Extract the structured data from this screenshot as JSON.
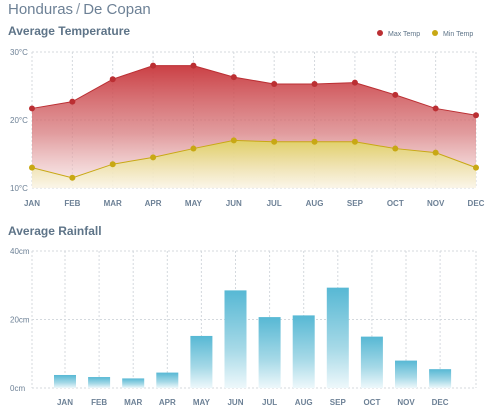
{
  "header": {
    "country": "Honduras",
    "separator": "/",
    "location": "De Copan"
  },
  "colors": {
    "max_temp": "#bb2f33",
    "max_temp_fill_top": "#c8363b",
    "min_temp": "#c8a814",
    "min_temp_fill_top": "#e0d264",
    "rain_bar_top": "#57b8d4",
    "grid": "#d4d9de",
    "axis_text": "#6d8196"
  },
  "chart_data": [
    {
      "type": "area",
      "title": "Average Temperature",
      "categories": [
        "JAN",
        "FEB",
        "MAR",
        "APR",
        "MAY",
        "JUN",
        "JUL",
        "AUG",
        "SEP",
        "OCT",
        "NOV",
        "DEC"
      ],
      "y_ticks": [
        {
          "value": 30,
          "label": "30°C"
        },
        {
          "value": 20,
          "label": "20°C"
        },
        {
          "value": 10,
          "label": "10°C"
        }
      ],
      "ylim": [
        10,
        30
      ],
      "grid": true,
      "legend_position": "top-right",
      "series": [
        {
          "name": "Max Temp",
          "values": [
            21.7,
            22.7,
            26.0,
            28.0,
            28.0,
            26.3,
            25.3,
            25.3,
            25.5,
            23.7,
            21.7,
            20.7
          ]
        },
        {
          "name": "Min Temp",
          "values": [
            13.0,
            11.5,
            13.5,
            14.5,
            15.8,
            17.0,
            16.8,
            16.8,
            16.8,
            15.8,
            15.2,
            13.0
          ]
        }
      ]
    },
    {
      "type": "bar",
      "title": "Average Rainfall",
      "categories": [
        "JAN",
        "FEB",
        "MAR",
        "APR",
        "MAY",
        "JUN",
        "JUL",
        "AUG",
        "SEP",
        "OCT",
        "NOV",
        "DEC"
      ],
      "values": [
        3.8,
        3.2,
        2.8,
        4.5,
        15.2,
        28.5,
        20.7,
        21.2,
        29.3,
        15.0,
        8.0,
        5.5
      ],
      "y_ticks": [
        {
          "value": 40,
          "label": "40cm"
        },
        {
          "value": 20,
          "label": "20cm"
        },
        {
          "value": 0,
          "label": "0cm"
        }
      ],
      "ylim": [
        0,
        40
      ],
      "grid": true
    }
  ]
}
